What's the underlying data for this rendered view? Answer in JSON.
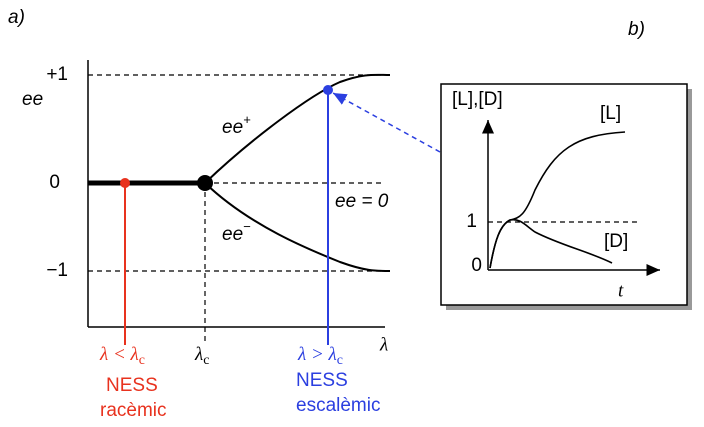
{
  "panel_a": {
    "label": "a)",
    "y_axis_label": "ee",
    "ticks": [
      "+1",
      "0",
      "−1"
    ],
    "upper_branch": {
      "base": "ee",
      "sup": "+"
    },
    "lower_branch": {
      "base": "ee",
      "sup": "−"
    },
    "zero_branch": "ee = 0",
    "x_axis_label": "λ",
    "critical": {
      "base": "λ",
      "sub": "c"
    },
    "left_regime": {
      "condition": "λ < λ",
      "sub": "c",
      "state": "NESS",
      "kind": "racèmic"
    },
    "right_regime": {
      "condition": "λ > λ",
      "sub": "c",
      "state": "NESS",
      "kind": "escalèmic"
    }
  },
  "panel_b": {
    "label": "b)",
    "y_axis_label": "[L],[D]",
    "curve_L": "[L]",
    "curve_D": "[D]",
    "ticks": [
      "1",
      "0"
    ],
    "x_axis_label": "t"
  }
}
